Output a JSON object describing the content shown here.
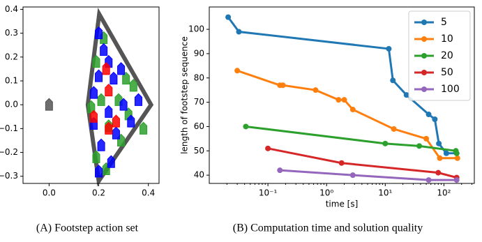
{
  "chart_data": [
    {
      "type": "scatter",
      "caption": "(A) Footstep action set",
      "xlim": [
        -0.105,
        0.443
      ],
      "ylim": [
        -0.33,
        0.41
      ],
      "xticks": [
        {
          "value": 0,
          "label": "0.0"
        },
        0.2,
        0.4
      ],
      "yticks": [
        {
          "value": -0.3,
          "label": "−0.3"
        },
        {
          "value": -0.2,
          "label": "−0.2"
        },
        {
          "value": -0.1,
          "label": "−0.1"
        },
        {
          "value": 0,
          "label": "0.0"
        },
        0.1,
        0.2,
        0.3,
        0.4
      ],
      "outline": {
        "color": "#555555",
        "x": [
          0.202,
          0.411,
          0.2,
          0.156
        ],
        "values": [
          0.38,
          0.0,
          -0.32,
          0.0
        ]
      },
      "series": [
        {
          "color": "#555555",
          "x": [
            0
          ],
          "values": [
            0
          ]
        },
        {
          "color": "#2ca02c",
          "x": [
            0.22,
            0.19,
            0.31,
            0.34,
            0.21,
            0.28,
            0.17,
            0.24,
            0.32,
            0.38,
            0.29,
            0.19,
            0.23
          ],
          "values": [
            0.28,
            0.18,
            0.11,
            0.08,
            0.02,
            0.02,
            -0.01,
            -0.09,
            -0.04,
            -0.1,
            -0.15,
            -0.22,
            -0.27
          ]
        },
        {
          "color": "#0000ff",
          "x": [
            0.2,
            0.22,
            0.24,
            0.26,
            0.18,
            0.29,
            0.24,
            0.3,
            0.36,
            0.18,
            0.27,
            0.21,
            0.25,
            0.2,
            0.33,
            0.2
          ],
          "values": [
            0.3,
            0.23,
            0.18,
            0.11,
            0.05,
            0.15,
            -0.03,
            0.0,
            0.02,
            -0.08,
            -0.12,
            -0.17,
            -0.24,
            -0.28,
            -0.07,
            0.12
          ]
        },
        {
          "color": "#ff0000",
          "x": [
            0.23,
            0.24,
            0.18,
            0.24,
            0.27
          ],
          "values": [
            0.15,
            0.06,
            -0.05,
            -0.1,
            -0.07
          ]
        }
      ]
    },
    {
      "type": "line",
      "caption": "(B) Computation time and solution quality",
      "xlabel": "time [s]",
      "ylabel": "length of footstep sequence",
      "log_x": true,
      "xlim": [
        0.01,
        330
      ],
      "ylim": [
        36.6,
        109.2
      ],
      "xticks": [
        {
          "value": 0.1,
          "label": "10⁻¹"
        },
        {
          "value": 1,
          "label": "10⁰"
        },
        {
          "value": 10,
          "label": "10¹"
        },
        {
          "value": 100,
          "label": "10²"
        }
      ],
      "yticks": [
        40,
        50,
        60,
        70,
        80,
        90,
        100
      ],
      "legend": "upper right",
      "series": [
        {
          "name": "5",
          "color": "#1f77b4",
          "x": [
            0.021,
            0.032,
            11.5,
            13.5,
            23,
            55,
            70,
            82,
            110,
            165
          ],
          "values": [
            105,
            99,
            92,
            79,
            73,
            65,
            63,
            53,
            49,
            49
          ]
        },
        {
          "name": "10",
          "color": "#ff7f0e",
          "x": [
            0.03,
            0.16,
            0.18,
            0.65,
            1.6,
            2,
            2.8,
            14,
            50,
            85,
            170
          ],
          "values": [
            83,
            77,
            77,
            75,
            71,
            71,
            67,
            59,
            55,
            47,
            47
          ]
        },
        {
          "name": "20",
          "color": "#2ca02c",
          "x": [
            0.042,
            10,
            38,
            160,
            165
          ],
          "values": [
            60,
            53,
            52,
            50,
            49
          ]
        },
        {
          "name": "50",
          "color": "#d62728",
          "x": [
            0.1,
            1.8,
            80,
            165
          ],
          "values": [
            51,
            45,
            41,
            39
          ]
        },
        {
          "name": "100",
          "color": "#9467bd",
          "x": [
            0.16,
            2.8,
            55,
            165
          ],
          "values": [
            42,
            40,
            38,
            38
          ]
        }
      ]
    }
  ]
}
